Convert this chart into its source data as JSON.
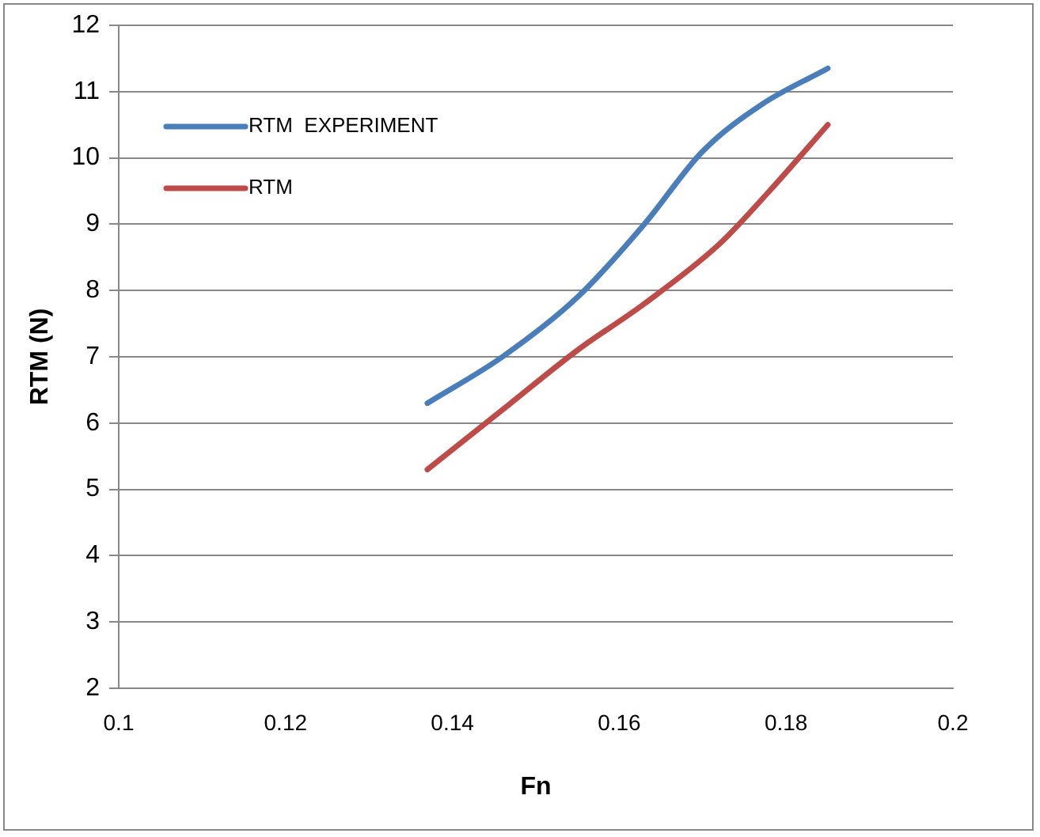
{
  "chart_data": {
    "type": "line",
    "xlabel": "Fn",
    "ylabel": "RTM (N)",
    "xlim": [
      0.1,
      0.2
    ],
    "xticks": [
      0.1,
      0.12,
      0.14,
      0.16,
      0.18,
      0.2
    ],
    "ylim": [
      2,
      12
    ],
    "yticks": [
      2,
      3,
      4,
      5,
      6,
      7,
      8,
      9,
      10,
      11,
      12
    ],
    "grid": "y",
    "legend": "top left",
    "marker": "none",
    "series": [
      {
        "name": "RTM  EXPERIMENT",
        "color": "#4a7ebb",
        "x": [
          0.137,
          0.146,
          0.155,
          0.163,
          0.17,
          0.177,
          0.185
        ],
        "values": [
          6.3,
          7.0,
          7.9,
          9.0,
          10.1,
          10.8,
          11.35
        ]
      },
      {
        "name": "RTM",
        "color": "#be4b48",
        "x": [
          0.137,
          0.146,
          0.155,
          0.163,
          0.172,
          0.178,
          0.185
        ],
        "values": [
          5.3,
          6.2,
          7.1,
          7.8,
          8.7,
          9.5,
          10.5
        ]
      }
    ]
  }
}
